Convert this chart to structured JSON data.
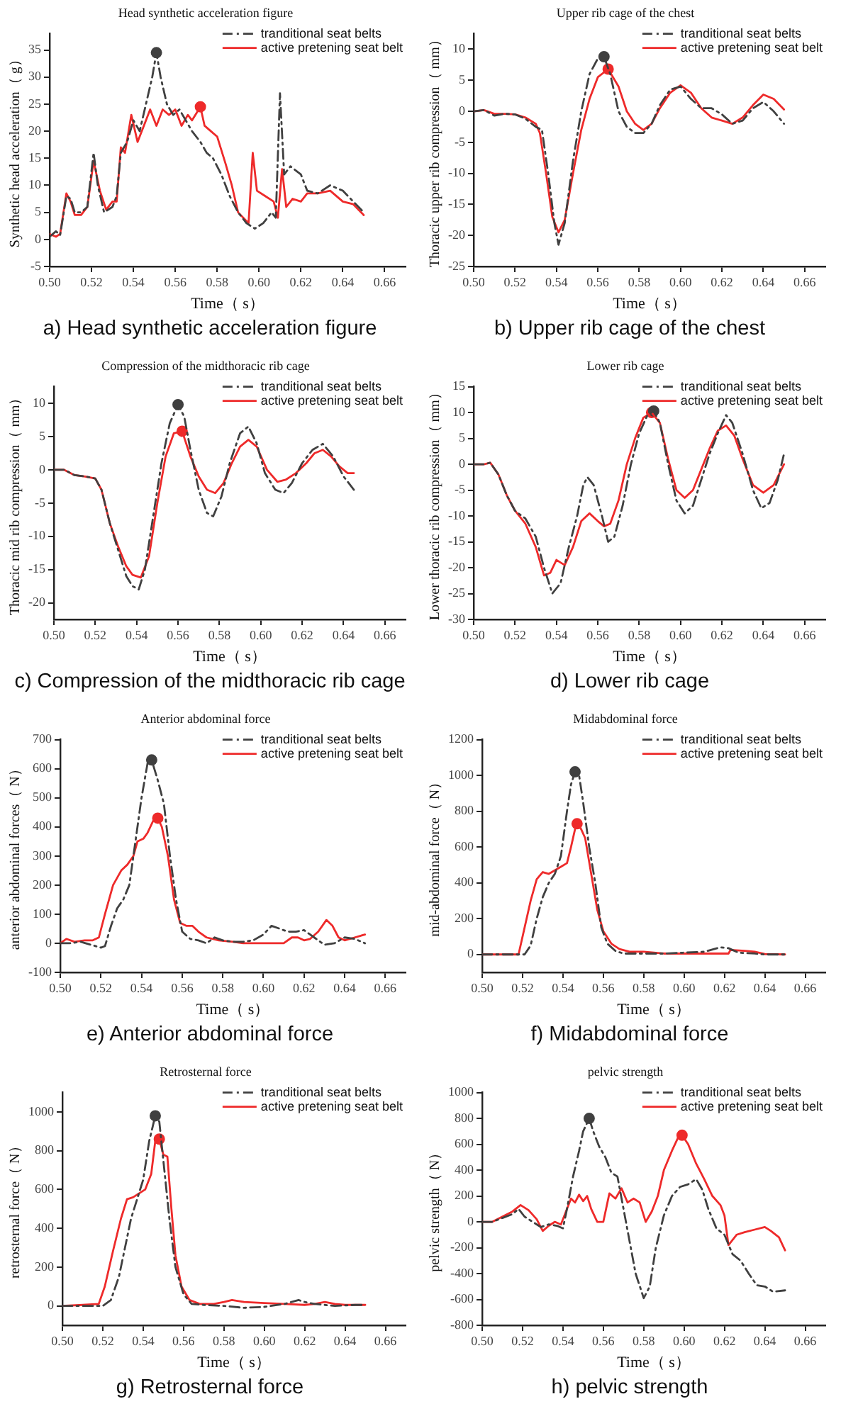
{
  "chart_data": [
    {
      "type": "line",
      "title": "Head synthetic acceleration figure",
      "xlabel": "Time（ s）",
      "ylabel": "Synthetic head acceleration（ g）",
      "annotations": [
        "a) Head synthetic acceleration figure"
      ],
      "xlim": [
        0.5,
        0.67
      ],
      "ylim": [
        -5,
        38
      ],
      "xticks": [
        {
          "value": 0.5,
          "label": "0.50"
        },
        {
          "value": 0.52,
          "label": "0.52"
        },
        {
          "value": 0.54,
          "label": "0.54"
        },
        {
          "value": 0.56,
          "label": "0.56"
        },
        {
          "value": 0.58,
          "label": "0.58"
        },
        {
          "value": 0.6,
          "label": "0.60"
        },
        {
          "value": 0.62,
          "label": "0.62"
        },
        {
          "value": 0.64,
          "label": "0.64"
        },
        {
          "value": 0.66,
          "label": "0.66"
        }
      ],
      "yticks": [
        -5,
        0,
        5,
        10,
        15,
        20,
        25,
        30,
        35
      ],
      "legend": "top right",
      "series": [
        {
          "name": "tranditional seat belts",
          "color": "#404040",
          "line_style": "dashed",
          "marker": "none",
          "x": [
            0.5,
            0.503,
            0.505,
            0.508,
            0.51,
            0.512,
            0.515,
            0.518,
            0.521,
            0.523,
            0.526,
            0.53,
            0.532,
            0.534,
            0.537,
            0.54,
            0.543,
            0.546,
            0.549,
            0.551,
            0.553,
            0.556,
            0.559,
            0.562,
            0.565,
            0.568,
            0.572,
            0.575,
            0.578,
            0.582,
            0.586,
            0.59,
            0.594,
            0.598,
            0.602,
            0.606,
            0.608,
            0.61,
            0.612,
            0.615,
            0.62,
            0.623,
            0.628,
            0.634,
            0.64,
            0.645,
            0.65
          ],
          "values": [
            0.5,
            1.5,
            0.8,
            8,
            7.5,
            5,
            5,
            6,
            16,
            10,
            5,
            6,
            8,
            16,
            18,
            22,
            20,
            25,
            30,
            34.5,
            30,
            25,
            23,
            24,
            22,
            20,
            18,
            16,
            15,
            12,
            8,
            5,
            3,
            2,
            3,
            5,
            4,
            27,
            12,
            13.5,
            12,
            9,
            8.5,
            10,
            9,
            7,
            5
          ]
        },
        {
          "name": "active pretening seat belt",
          "color": "#ee2a2a",
          "line_style": "solid",
          "marker": "none",
          "x": [
            0.5,
            0.503,
            0.505,
            0.508,
            0.51,
            0.512,
            0.515,
            0.518,
            0.521,
            0.524,
            0.527,
            0.53,
            0.532,
            0.534,
            0.536,
            0.539,
            0.542,
            0.545,
            0.548,
            0.551,
            0.554,
            0.557,
            0.56,
            0.563,
            0.566,
            0.568,
            0.572,
            0.574,
            0.577,
            0.58,
            0.584,
            0.587,
            0.59,
            0.595,
            0.597,
            0.599,
            0.603,
            0.607,
            0.609,
            0.611,
            0.613,
            0.616,
            0.62,
            0.623,
            0.628,
            0.634,
            0.64,
            0.645,
            0.65
          ],
          "values": [
            1,
            0.5,
            1,
            8.5,
            7,
            4.5,
            4.5,
            6,
            14.5,
            9,
            5.5,
            7,
            7,
            17,
            16,
            23,
            18,
            21,
            24,
            21,
            24,
            23,
            24,
            21,
            23,
            22,
            24.5,
            21,
            20,
            19,
            14,
            10,
            5,
            3,
            16,
            9,
            8,
            7,
            4,
            13,
            6,
            7.5,
            7,
            8.5,
            8.5,
            9,
            7,
            6.5,
            4.5
          ]
        },
        {
          "type": "scatter",
          "color": "#404040",
          "marker": "circle",
          "x": [
            0.551
          ],
          "values": [
            34.5
          ]
        },
        {
          "type": "scatter",
          "color": "#ee2a2a",
          "marker": "circle",
          "x": [
            0.572
          ],
          "values": [
            24.5
          ]
        }
      ]
    },
    {
      "type": "line",
      "title": "Upper rib cage of the chest",
      "xlabel": "Time（ s）",
      "ylabel": "Thoracic upper rib compression（ mm）",
      "annotations": [
        "b) Upper rib cage of the chest"
      ],
      "xlim": [
        0.5,
        0.67
      ],
      "ylim": [
        -25,
        12.5
      ],
      "xticks": [
        {
          "value": 0.5,
          "label": "0.50"
        },
        {
          "value": 0.52,
          "label": "0.52"
        },
        {
          "value": 0.54,
          "label": "0.54"
        },
        {
          "value": 0.56,
          "label": "0.56"
        },
        {
          "value": 0.58,
          "label": "0.58"
        },
        {
          "value": 0.6,
          "label": "0.60"
        },
        {
          "value": 0.62,
          "label": "0.62"
        },
        {
          "value": 0.64,
          "label": "0.64"
        },
        {
          "value": 0.66,
          "label": "0.66"
        }
      ],
      "yticks": [
        -25,
        -20,
        -15,
        -10,
        -5,
        0,
        5,
        10
      ],
      "legend": "top right",
      "series": [
        {
          "name": "tranditional seat belts",
          "color": "#404040",
          "line_style": "dashed",
          "marker": "none",
          "x": [
            0.5,
            0.505,
            0.51,
            0.515,
            0.52,
            0.525,
            0.53,
            0.533,
            0.536,
            0.539,
            0.541,
            0.544,
            0.548,
            0.552,
            0.556,
            0.56,
            0.563,
            0.566,
            0.57,
            0.574,
            0.578,
            0.582,
            0.586,
            0.59,
            0.595,
            0.6,
            0.605,
            0.61,
            0.615,
            0.62,
            0.625,
            0.63,
            0.635,
            0.64,
            0.645,
            0.65
          ],
          "values": [
            0,
            0.2,
            -0.7,
            -0.4,
            -0.5,
            -1.2,
            -2.5,
            -3,
            -10,
            -18,
            -21.5,
            -18,
            -8,
            0,
            6,
            8.5,
            8.8,
            6,
            0,
            -2.5,
            -3.5,
            -3.5,
            -2,
            1,
            3.5,
            4,
            2,
            0.5,
            0.5,
            -0.5,
            -2,
            -1.5,
            0.5,
            1.5,
            0,
            -2
          ]
        },
        {
          "name": "active pretening seat belt",
          "color": "#ee2a2a",
          "line_style": "solid",
          "marker": "none",
          "x": [
            0.5,
            0.505,
            0.51,
            0.515,
            0.52,
            0.525,
            0.53,
            0.532,
            0.535,
            0.538,
            0.541,
            0.544,
            0.548,
            0.552,
            0.556,
            0.56,
            0.565,
            0.57,
            0.574,
            0.578,
            0.582,
            0.586,
            0.59,
            0.595,
            0.6,
            0.605,
            0.61,
            0.615,
            0.62,
            0.625,
            0.63,
            0.635,
            0.64,
            0.645,
            0.65
          ],
          "values": [
            0,
            0.2,
            -0.4,
            -0.4,
            -0.5,
            -1,
            -2,
            -3.5,
            -10,
            -17,
            -19.5,
            -17.5,
            -10,
            -3,
            2,
            5.5,
            6.8,
            4,
            0,
            -2,
            -3,
            -2,
            0.5,
            3,
            4.2,
            3,
            0.5,
            -1,
            -1.5,
            -2,
            -1,
            1,
            2.7,
            2,
            0.3
          ]
        },
        {
          "type": "scatter",
          "color": "#404040",
          "marker": "circle",
          "x": [
            0.563
          ],
          "values": [
            8.8
          ]
        },
        {
          "type": "scatter",
          "color": "#ee2a2a",
          "marker": "circle",
          "x": [
            0.565
          ],
          "values": [
            6.8
          ]
        }
      ]
    },
    {
      "type": "line",
      "title": "Compression of the midthoracic rib cage",
      "xlabel": "Time（ s）",
      "ylabel": "Thoracic mid rib compression（ mm）",
      "annotations": [
        "c) Compression of the midthoracic rib cage"
      ],
      "xlim": [
        0.5,
        0.67
      ],
      "ylim": [
        -22.5,
        12.5
      ],
      "xticks": [
        {
          "value": 0.5,
          "label": "0.50"
        },
        {
          "value": 0.52,
          "label": "0.52"
        },
        {
          "value": 0.54,
          "label": "0.54"
        },
        {
          "value": 0.56,
          "label": "0.56"
        },
        {
          "value": 0.58,
          "label": "0.58"
        },
        {
          "value": 0.6,
          "label": "0.60"
        },
        {
          "value": 0.62,
          "label": "0.62"
        },
        {
          "value": 0.64,
          "label": "0.64"
        },
        {
          "value": 0.66,
          "label": "0.66"
        }
      ],
      "yticks": [
        -20,
        -15,
        -10,
        -5,
        0,
        5,
        10
      ],
      "legend": "top right",
      "series": [
        {
          "name": "tranditional seat belts",
          "color": "#404040",
          "line_style": "dashed",
          "marker": "none",
          "x": [
            0.5,
            0.505,
            0.51,
            0.515,
            0.52,
            0.523,
            0.527,
            0.531,
            0.535,
            0.538,
            0.541,
            0.544,
            0.548,
            0.552,
            0.556,
            0.56,
            0.563,
            0.566,
            0.57,
            0.574,
            0.577,
            0.581,
            0.585,
            0.59,
            0.594,
            0.598,
            0.602,
            0.607,
            0.611,
            0.615,
            0.62,
            0.625,
            0.63,
            0.635,
            0.64,
            0.645
          ],
          "values": [
            0,
            0,
            -0.8,
            -1,
            -1.3,
            -3,
            -8,
            -12,
            -16,
            -17.5,
            -18,
            -15,
            -7,
            1,
            7,
            9.8,
            8,
            3,
            -3,
            -6.5,
            -7,
            -4,
            1,
            5.5,
            6.5,
            4,
            -0.5,
            -3,
            -3.5,
            -2,
            1,
            3,
            3.9,
            2,
            -1,
            -3
          ]
        },
        {
          "name": "active pretening seat belt",
          "color": "#ee2a2a",
          "line_style": "solid",
          "marker": "none",
          "x": [
            0.5,
            0.505,
            0.51,
            0.515,
            0.52,
            0.523,
            0.527,
            0.531,
            0.535,
            0.538,
            0.542,
            0.546,
            0.55,
            0.554,
            0.558,
            0.562,
            0.566,
            0.57,
            0.574,
            0.578,
            0.582,
            0.586,
            0.59,
            0.594,
            0.598,
            0.603,
            0.608,
            0.612,
            0.617,
            0.622,
            0.626,
            0.63,
            0.634,
            0.638,
            0.642,
            0.645
          ],
          "values": [
            0,
            0,
            -0.8,
            -1,
            -1.3,
            -3,
            -8,
            -11.5,
            -14.5,
            -15.8,
            -16.2,
            -13,
            -5,
            2,
            5.5,
            5.8,
            2,
            -1,
            -3,
            -3.5,
            -2,
            1,
            3.5,
            4.5,
            3.5,
            0,
            -1.8,
            -1.5,
            -0.5,
            1,
            2.5,
            3,
            2,
            0.5,
            -0.5,
            -0.5
          ]
        },
        {
          "type": "scatter",
          "color": "#404040",
          "marker": "circle",
          "x": [
            0.56
          ],
          "values": [
            9.8
          ]
        },
        {
          "type": "scatter",
          "color": "#ee2a2a",
          "marker": "circle",
          "x": [
            0.562
          ],
          "values": [
            5.8
          ]
        }
      ]
    },
    {
      "type": "line",
      "title": "Lower rib cage",
      "xlabel": "Time（ s）",
      "ylabel": "Lower thoracic rib compression（ mm）",
      "annotations": [
        "d) Lower rib cage"
      ],
      "xlim": [
        0.5,
        0.67
      ],
      "ylim": [
        -30,
        15
      ],
      "xticks": [
        {
          "value": 0.5,
          "label": "0.50"
        },
        {
          "value": 0.52,
          "label": "0.52"
        },
        {
          "value": 0.54,
          "label": "0.54"
        },
        {
          "value": 0.56,
          "label": "0.56"
        },
        {
          "value": 0.58,
          "label": "0.58"
        },
        {
          "value": 0.6,
          "label": "0.60"
        },
        {
          "value": 0.62,
          "label": "0.62"
        },
        {
          "value": 0.64,
          "label": "0.64"
        },
        {
          "value": 0.66,
          "label": "0.66"
        }
      ],
      "yticks": [
        -30,
        -25,
        -20,
        -15,
        -10,
        -5,
        0,
        5,
        10,
        15
      ],
      "legend": "top right",
      "series": [
        {
          "name": "tranditional seat belts",
          "color": "#404040",
          "line_style": "dashed",
          "marker": "none",
          "x": [
            0.5,
            0.505,
            0.508,
            0.512,
            0.516,
            0.52,
            0.525,
            0.53,
            0.534,
            0.538,
            0.542,
            0.546,
            0.55,
            0.553,
            0.555,
            0.558,
            0.562,
            0.565,
            0.568,
            0.572,
            0.576,
            0.58,
            0.584,
            0.587,
            0.59,
            0.594,
            0.598,
            0.602,
            0.606,
            0.61,
            0.614,
            0.618,
            0.622,
            0.625,
            0.63,
            0.635,
            0.639,
            0.643,
            0.647,
            0.65
          ],
          "values": [
            0,
            0,
            0.3,
            -2,
            -6,
            -9,
            -10.5,
            -14,
            -20,
            -25,
            -23,
            -16,
            -10,
            -4,
            -2.5,
            -4,
            -10,
            -15,
            -14,
            -8,
            0,
            6,
            9.5,
            10.3,
            8,
            0,
            -7,
            -9.5,
            -8,
            -3,
            2,
            6,
            9.5,
            8,
            2,
            -5,
            -8.5,
            -7.5,
            -3,
            2
          ]
        },
        {
          "name": "active pretening seat belt",
          "color": "#ee2a2a",
          "line_style": "solid",
          "marker": "none",
          "x": [
            0.5,
            0.505,
            0.508,
            0.512,
            0.516,
            0.52,
            0.525,
            0.53,
            0.534,
            0.537,
            0.54,
            0.544,
            0.548,
            0.552,
            0.556,
            0.56,
            0.563,
            0.566,
            0.57,
            0.574,
            0.578,
            0.582,
            0.586,
            0.59,
            0.594,
            0.598,
            0.602,
            0.606,
            0.61,
            0.614,
            0.618,
            0.622,
            0.626,
            0.63,
            0.635,
            0.64,
            0.645,
            0.65
          ],
          "values": [
            0,
            0,
            0.3,
            -2,
            -6,
            -9,
            -11.5,
            -16,
            -21.5,
            -21,
            -18.5,
            -19.5,
            -16,
            -11,
            -9.5,
            -11,
            -12,
            -11.5,
            -7,
            0,
            5,
            9,
            10,
            8,
            1,
            -5,
            -6.5,
            -5,
            -1,
            3,
            6.5,
            7.5,
            5.5,
            1,
            -4,
            -5.5,
            -4,
            0
          ]
        },
        {
          "type": "scatter",
          "color": "#404040",
          "marker": "circle",
          "x": [
            0.587
          ],
          "values": [
            10.3
          ]
        },
        {
          "type": "scatter",
          "color": "#ee2a2a",
          "marker": "circle",
          "x": [
            0.586
          ],
          "values": [
            10
          ]
        }
      ]
    },
    {
      "type": "line",
      "title": "Anterior abdominal force",
      "xlabel": "Time（ s）",
      "ylabel": "anterior abdominal forces（ N）",
      "annotations": [
        "e) Anterior abdominal force"
      ],
      "xlim": [
        0.5,
        0.67
      ],
      "ylim": [
        -100,
        700
      ],
      "xticks": [
        {
          "value": 0.5,
          "label": "0.50"
        },
        {
          "value": 0.52,
          "label": "0.52"
        },
        {
          "value": 0.54,
          "label": "0.54"
        },
        {
          "value": 0.56,
          "label": "0.56"
        },
        {
          "value": 0.58,
          "label": "0.58"
        },
        {
          "value": 0.6,
          "label": "0.60"
        },
        {
          "value": 0.62,
          "label": "0.62"
        },
        {
          "value": 0.64,
          "label": "0.64"
        },
        {
          "value": 0.66,
          "label": "0.66"
        }
      ],
      "yticks": [
        -100,
        0,
        100,
        200,
        300,
        400,
        500,
        600,
        700
      ],
      "legend": "top right",
      "series": [
        {
          "name": "tranditional seat belts",
          "color": "#404040",
          "line_style": "dashed",
          "marker": "none",
          "x": [
            0.5,
            0.505,
            0.51,
            0.515,
            0.52,
            0.522,
            0.525,
            0.528,
            0.531,
            0.534,
            0.537,
            0.54,
            0.543,
            0.545,
            0.548,
            0.551,
            0.554,
            0.557,
            0.56,
            0.564,
            0.568,
            0.572,
            0.576,
            0.58,
            0.585,
            0.59,
            0.595,
            0.6,
            0.604,
            0.608,
            0.612,
            0.616,
            0.62,
            0.625,
            0.63,
            0.635,
            0.64,
            0.645,
            0.65
          ],
          "values": [
            0,
            0,
            5,
            -5,
            -15,
            -10,
            60,
            120,
            150,
            200,
            350,
            500,
            620,
            630,
            560,
            480,
            300,
            150,
            40,
            15,
            10,
            0,
            20,
            10,
            5,
            5,
            10,
            30,
            60,
            50,
            40,
            40,
            45,
            20,
            -5,
            0,
            20,
            15,
            0
          ]
        },
        {
          "name": "active pretening seat belt",
          "color": "#ee2a2a",
          "line_style": "solid",
          "marker": "none",
          "x": [
            0.5,
            0.503,
            0.507,
            0.512,
            0.516,
            0.519,
            0.522,
            0.526,
            0.53,
            0.533,
            0.536,
            0.538,
            0.541,
            0.543,
            0.546,
            0.548,
            0.55,
            0.553,
            0.556,
            0.559,
            0.562,
            0.565,
            0.568,
            0.572,
            0.578,
            0.585,
            0.59,
            0.6,
            0.61,
            0.614,
            0.617,
            0.62,
            0.623,
            0.627,
            0.631,
            0.634,
            0.637,
            0.64,
            0.645,
            0.65
          ],
          "values": [
            0,
            15,
            5,
            10,
            10,
            20,
            100,
            200,
            250,
            270,
            300,
            350,
            360,
            380,
            425,
            430,
            400,
            300,
            150,
            70,
            60,
            60,
            40,
            20,
            10,
            5,
            0,
            0,
            0,
            20,
            20,
            10,
            15,
            40,
            80,
            60,
            20,
            10,
            20,
            30
          ]
        },
        {
          "type": "scatter",
          "color": "#404040",
          "marker": "circle",
          "x": [
            0.545
          ],
          "values": [
            630
          ]
        },
        {
          "type": "scatter",
          "color": "#ee2a2a",
          "marker": "circle",
          "x": [
            0.548
          ],
          "values": [
            430
          ]
        }
      ]
    },
    {
      "type": "line",
      "title": "Midabdominal force",
      "xlabel": "Time（ s）",
      "ylabel": "mid-abdominal force（ N）",
      "annotations": [
        "f) Midabdominal force"
      ],
      "xlim": [
        0.5,
        0.67
      ],
      "ylim": [
        -100,
        1200
      ],
      "xticks": [
        {
          "value": 0.5,
          "label": "0.50"
        },
        {
          "value": 0.52,
          "label": "0.52"
        },
        {
          "value": 0.54,
          "label": "0.54"
        },
        {
          "value": 0.56,
          "label": "0.56"
        },
        {
          "value": 0.58,
          "label": "0.58"
        },
        {
          "value": 0.6,
          "label": "0.60"
        },
        {
          "value": 0.62,
          "label": "0.62"
        },
        {
          "value": 0.64,
          "label": "0.64"
        },
        {
          "value": 0.66,
          "label": "0.66"
        }
      ],
      "yticks": [
        0,
        200,
        400,
        600,
        800,
        1000,
        1200
      ],
      "legend": "top right",
      "series": [
        {
          "name": "tranditional seat belts",
          "color": "#404040",
          "line_style": "dashed",
          "marker": "none",
          "x": [
            0.5,
            0.51,
            0.521,
            0.524,
            0.527,
            0.53,
            0.533,
            0.536,
            0.539,
            0.542,
            0.544,
            0.546,
            0.548,
            0.55,
            0.553,
            0.556,
            0.559,
            0.562,
            0.566,
            0.57,
            0.58,
            0.59,
            0.6,
            0.61,
            0.618,
            0.622,
            0.627,
            0.635,
            0.64,
            0.65
          ],
          "values": [
            0,
            0,
            0,
            50,
            200,
            320,
            400,
            450,
            550,
            800,
            950,
            1020,
            1000,
            850,
            600,
            400,
            150,
            60,
            20,
            5,
            5,
            5,
            10,
            15,
            40,
            35,
            10,
            5,
            0,
            0
          ]
        },
        {
          "name": "active pretening seat belt",
          "color": "#ee2a2a",
          "line_style": "solid",
          "marker": "none",
          "x": [
            0.5,
            0.51,
            0.518,
            0.521,
            0.524,
            0.527,
            0.53,
            0.533,
            0.536,
            0.539,
            0.542,
            0.544,
            0.546,
            0.547,
            0.549,
            0.551,
            0.554,
            0.557,
            0.56,
            0.564,
            0.568,
            0.573,
            0.58,
            0.59,
            0.6,
            0.61,
            0.622,
            0.623,
            0.63,
            0.635,
            0.64,
            0.65
          ],
          "values": [
            0,
            0,
            0,
            150,
            300,
            420,
            460,
            450,
            470,
            490,
            510,
            600,
            700,
            730,
            700,
            650,
            450,
            250,
            130,
            60,
            30,
            15,
            15,
            5,
            5,
            5,
            5,
            25,
            20,
            15,
            2,
            0
          ]
        },
        {
          "type": "scatter",
          "color": "#404040",
          "marker": "circle",
          "x": [
            0.546
          ],
          "values": [
            1020
          ]
        },
        {
          "type": "scatter",
          "color": "#ee2a2a",
          "marker": "circle",
          "x": [
            0.547
          ],
          "values": [
            730
          ]
        }
      ]
    },
    {
      "type": "line",
      "title": "Retrosternal force",
      "xlabel": "Time（ s）",
      "ylabel": "retrosternal force（ N）",
      "annotations": [
        "g) Retrosternal force"
      ],
      "xlim": [
        0.5,
        0.67
      ],
      "ylim": [
        -100,
        1100
      ],
      "xticks": [
        {
          "value": 0.5,
          "label": "0.50"
        },
        {
          "value": 0.52,
          "label": "0.52"
        },
        {
          "value": 0.54,
          "label": "0.54"
        },
        {
          "value": 0.56,
          "label": "0.56"
        },
        {
          "value": 0.58,
          "label": "0.58"
        },
        {
          "value": 0.6,
          "label": "0.60"
        },
        {
          "value": 0.62,
          "label": "0.62"
        },
        {
          "value": 0.64,
          "label": "0.64"
        },
        {
          "value": 0.66,
          "label": "0.66"
        }
      ],
      "yticks": [
        0,
        200,
        400,
        600,
        800,
        1000
      ],
      "legend": "top right",
      "series": [
        {
          "name": "tranditional seat belts",
          "color": "#404040",
          "line_style": "dashed",
          "marker": "none",
          "x": [
            0.5,
            0.51,
            0.52,
            0.524,
            0.528,
            0.531,
            0.534,
            0.537,
            0.54,
            0.543,
            0.546,
            0.548,
            0.55,
            0.553,
            0.556,
            0.56,
            0.564,
            0.57,
            0.58,
            0.59,
            0.6,
            0.61,
            0.617,
            0.62,
            0.625,
            0.635,
            0.645,
            0.65
          ],
          "values": [
            0,
            0,
            0,
            30,
            150,
            300,
            450,
            550,
            650,
            850,
            980,
            950,
            750,
            450,
            200,
            60,
            10,
            5,
            0,
            -10,
            -5,
            10,
            30,
            20,
            10,
            0,
            5,
            5
          ]
        },
        {
          "name": "active pretening seat belt",
          "color": "#ee2a2a",
          "line_style": "solid",
          "marker": "none",
          "x": [
            0.5,
            0.51,
            0.518,
            0.521,
            0.525,
            0.529,
            0.532,
            0.535,
            0.538,
            0.541,
            0.544,
            0.546,
            0.548,
            0.55,
            0.552,
            0.554,
            0.556,
            0.559,
            0.563,
            0.568,
            0.575,
            0.58,
            0.584,
            0.59,
            0.6,
            0.61,
            0.62,
            0.625,
            0.63,
            0.635,
            0.64,
            0.65
          ],
          "values": [
            0,
            5,
            10,
            100,
            280,
            450,
            550,
            560,
            580,
            600,
            680,
            850,
            860,
            780,
            770,
            500,
            260,
            100,
            30,
            10,
            10,
            20,
            30,
            20,
            15,
            10,
            5,
            10,
            20,
            10,
            5,
            5
          ]
        },
        {
          "type": "scatter",
          "color": "#404040",
          "marker": "circle",
          "x": [
            0.546
          ],
          "values": [
            980
          ]
        },
        {
          "type": "scatter",
          "color": "#ee2a2a",
          "marker": "circle",
          "x": [
            0.548
          ],
          "values": [
            860
          ]
        }
      ]
    },
    {
      "type": "line",
      "title": "pelvic strength",
      "xlabel": "Time（ s）",
      "ylabel": "pelvic strength（ N）",
      "annotations": [
        "h) pelvic strength"
      ],
      "xlim": [
        0.5,
        0.67
      ],
      "ylim": [
        -800,
        1000
      ],
      "xticks": [
        {
          "value": 0.5,
          "label": "0.50"
        },
        {
          "value": 0.52,
          "label": "0.52"
        },
        {
          "value": 0.54,
          "label": "0.54"
        },
        {
          "value": 0.56,
          "label": "0.56"
        },
        {
          "value": 0.58,
          "label": "0.58"
        },
        {
          "value": 0.6,
          "label": "0.60"
        },
        {
          "value": 0.62,
          "label": "0.62"
        },
        {
          "value": 0.64,
          "label": "0.64"
        },
        {
          "value": 0.66,
          "label": "0.66"
        }
      ],
      "yticks": [
        -800,
        -600,
        -400,
        -200,
        0,
        200,
        400,
        600,
        800,
        1000
      ],
      "legend": "top right",
      "series": [
        {
          "name": "tranditional seat belts",
          "color": "#404040",
          "line_style": "dashed",
          "marker": "none",
          "x": [
            0.5,
            0.505,
            0.51,
            0.515,
            0.518,
            0.521,
            0.525,
            0.529,
            0.533,
            0.537,
            0.54,
            0.542,
            0.545,
            0.548,
            0.55,
            0.553,
            0.555,
            0.558,
            0.561,
            0.564,
            0.567,
            0.57,
            0.573,
            0.576,
            0.58,
            0.583,
            0.586,
            0.59,
            0.594,
            0.598,
            0.602,
            0.606,
            0.609,
            0.612,
            0.616,
            0.62,
            0.624,
            0.628,
            0.632,
            0.636,
            0.64,
            0.644,
            0.65
          ],
          "values": [
            0,
            0,
            30,
            60,
            100,
            40,
            0,
            -40,
            -20,
            -30,
            -50,
            100,
            350,
            550,
            700,
            800,
            700,
            580,
            500,
            380,
            350,
            100,
            -150,
            -400,
            -590,
            -500,
            -200,
            50,
            200,
            270,
            290,
            330,
            250,
            100,
            -50,
            -100,
            -250,
            -300,
            -400,
            -490,
            -500,
            -540,
            -530
          ]
        },
        {
          "name": "active pretening seat belt",
          "color": "#ee2a2a",
          "line_style": "solid",
          "marker": "none",
          "x": [
            0.5,
            0.505,
            0.51,
            0.515,
            0.519,
            0.523,
            0.527,
            0.53,
            0.533,
            0.536,
            0.539,
            0.542,
            0.544,
            0.546,
            0.548,
            0.55,
            0.552,
            0.554,
            0.557,
            0.56,
            0.563,
            0.566,
            0.569,
            0.572,
            0.575,
            0.578,
            0.581,
            0.584,
            0.587,
            0.59,
            0.594,
            0.597,
            0.599,
            0.602,
            0.606,
            0.61,
            0.614,
            0.618,
            0.62,
            0.622,
            0.626,
            0.63,
            0.635,
            0.64,
            0.643,
            0.647,
            0.65
          ],
          "values": [
            0,
            0,
            40,
            80,
            130,
            90,
            20,
            -70,
            -30,
            0,
            -20,
            100,
            180,
            150,
            210,
            160,
            200,
            100,
            0,
            0,
            220,
            180,
            260,
            150,
            180,
            150,
            0,
            80,
            200,
            400,
            550,
            650,
            670,
            600,
            450,
            330,
            200,
            130,
            50,
            -180,
            -100,
            -80,
            -60,
            -40,
            -70,
            -120,
            -220
          ]
        },
        {
          "type": "scatter",
          "color": "#404040",
          "marker": "circle",
          "x": [
            0.553
          ],
          "values": [
            800
          ]
        },
        {
          "type": "scatter",
          "color": "#ee2a2a",
          "marker": "circle",
          "x": [
            0.599
          ],
          "values": [
            670
          ]
        }
      ]
    }
  ]
}
